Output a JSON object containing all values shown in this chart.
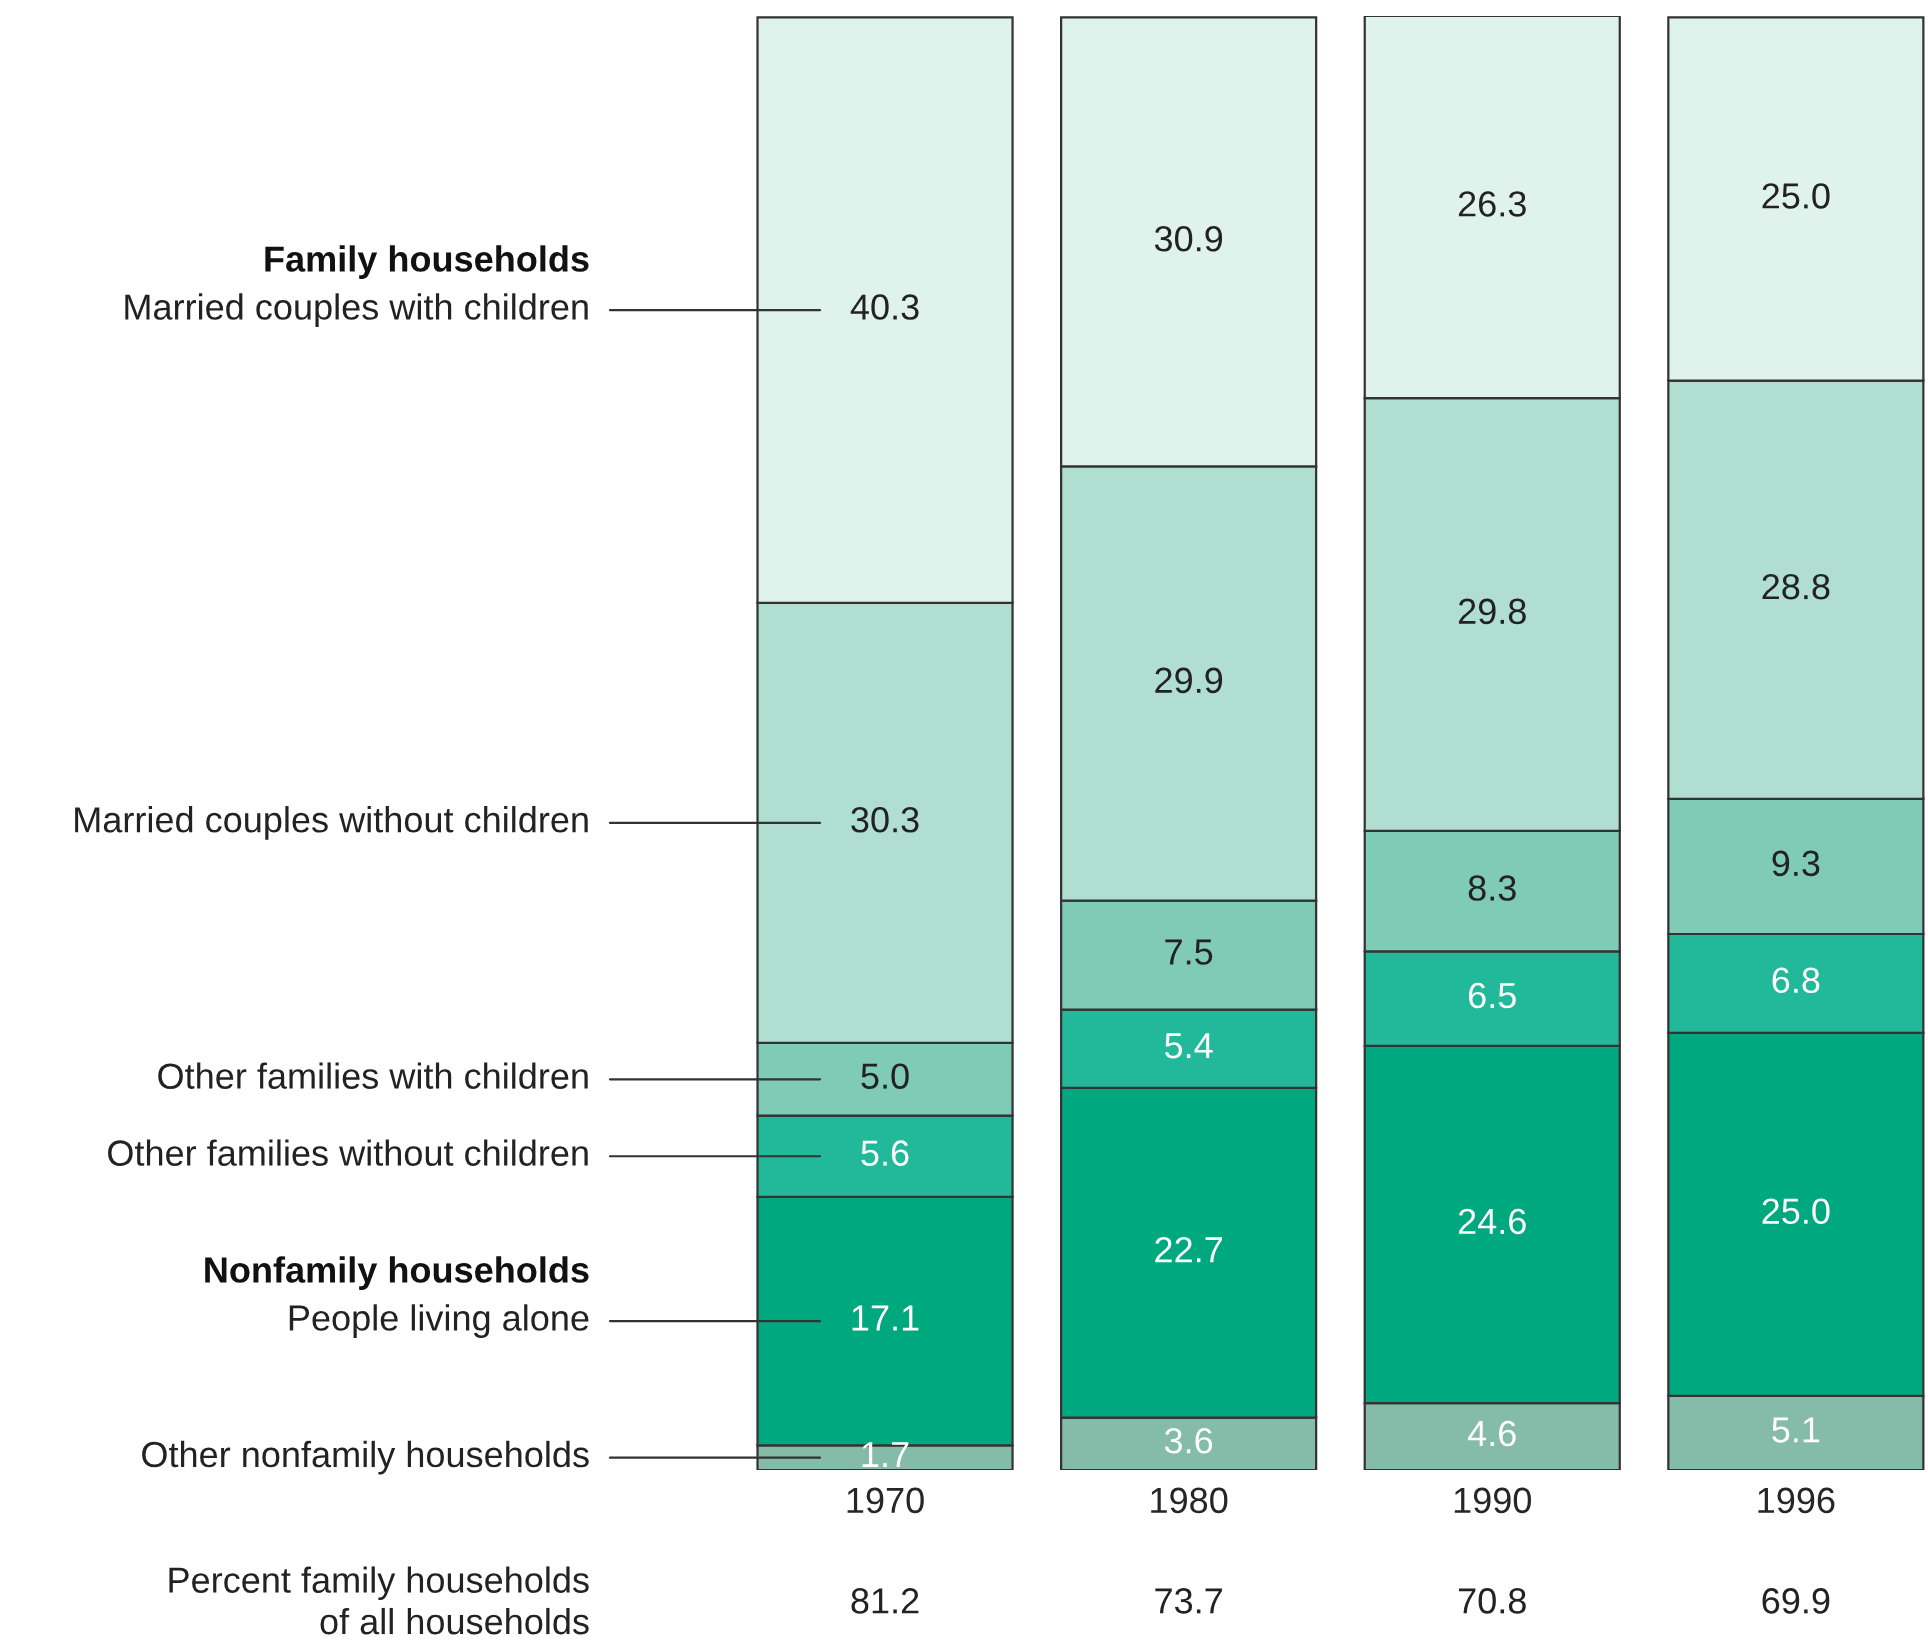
{
  "chart_data": {
    "type": "bar",
    "stacked": true,
    "categories": [
      "1970",
      "1980",
      "1990",
      "1996"
    ],
    "series": [
      {
        "name": "Other nonfamily households",
        "color": "#84bca9",
        "values": [
          1.7,
          3.6,
          4.6,
          5.1
        ],
        "value_labels": [
          "1.7",
          "3.6",
          "4.6",
          "5.1"
        ]
      },
      {
        "name": "People living alone",
        "color": "#00a880",
        "values": [
          17.1,
          22.7,
          24.6,
          25.0
        ],
        "value_labels": [
          "17.1",
          "22.7",
          "24.6",
          "25.0"
        ]
      },
      {
        "name": "Other families without children",
        "color": "#22b99a",
        "values": [
          5.6,
          5.4,
          6.5,
          6.8
        ],
        "value_labels": [
          "5.6",
          "5.4",
          "6.5",
          "6.8"
        ]
      },
      {
        "name": "Other families with children",
        "color": "#7fcbb6",
        "values": [
          5.0,
          7.5,
          8.3,
          9.3
        ],
        "value_labels": [
          "5.0",
          "7.5",
          "8.3",
          "9.3"
        ]
      },
      {
        "name": "Married couples without children",
        "color": "#b0dfd2",
        "values": [
          30.3,
          29.9,
          29.8,
          28.8
        ],
        "value_labels": [
          "30.3",
          "29.9",
          "29.8",
          "28.8"
        ]
      },
      {
        "name": "Married couples with children",
        "color": "#e0f2ec",
        "values": [
          40.3,
          30.9,
          26.3,
          25.0
        ],
        "value_labels": [
          "40.3",
          "30.9",
          "26.3",
          "25.0"
        ]
      }
    ],
    "annotations": [
      "Family households",
      "Nonfamily households",
      "Percent family households\nof all households",
      "81.2",
      "73.7",
      "70.8",
      "69.9"
    ],
    "legend": false,
    "grid": false
  }
}
